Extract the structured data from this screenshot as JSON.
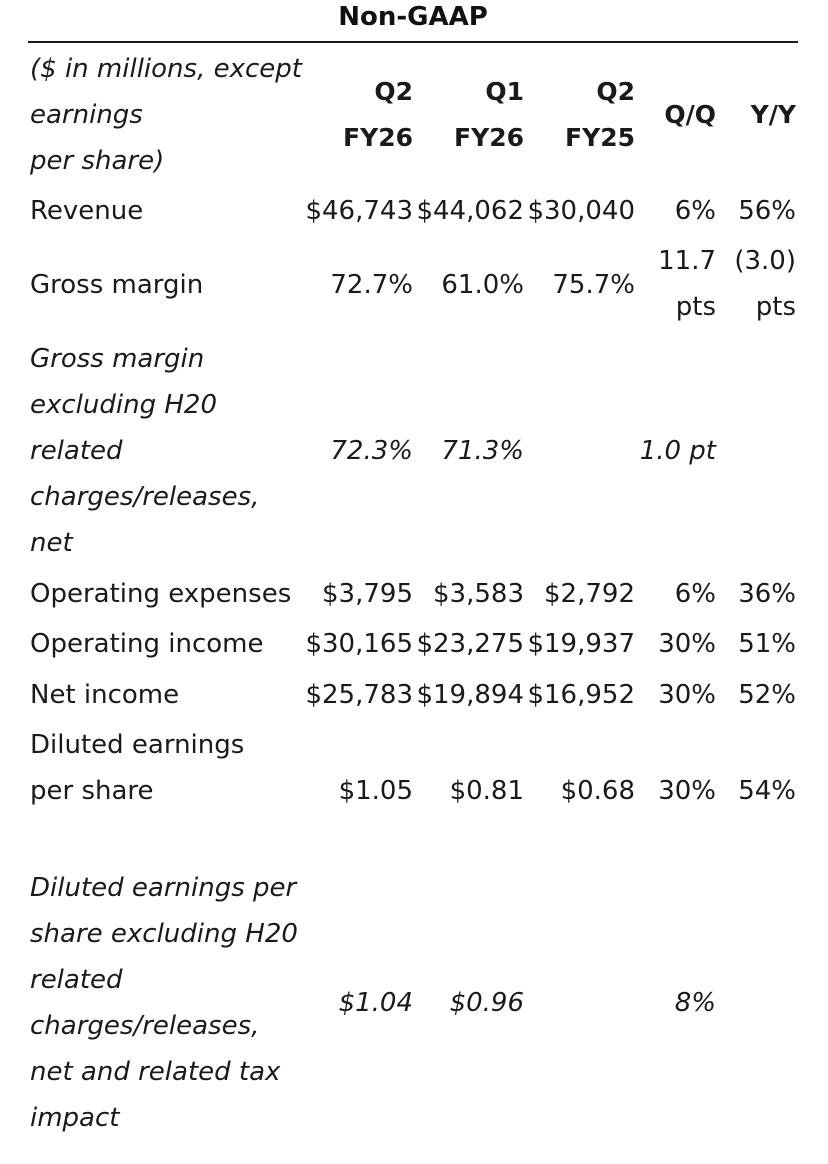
{
  "title": "Non-GAAP",
  "header": {
    "label": [
      "($ in millions, except",
      "earnings",
      "per share)"
    ],
    "q2fy26": [
      "Q2",
      "FY26"
    ],
    "q1fy26": [
      "Q1",
      "FY26"
    ],
    "q2fy25": [
      "Q2",
      "FY25"
    ],
    "qq": "Q/Q",
    "yy": "Y/Y"
  },
  "rows": {
    "revenue": {
      "label": "Revenue",
      "q2fy26": "$46,743",
      "q1fy26": "$44,062",
      "q2fy25": "$30,040",
      "qq": "6%",
      "yy": "56%"
    },
    "gross_margin": {
      "label": "Gross margin",
      "q2fy26": "72.7%",
      "q1fy26": "61.0%",
      "q2fy25": "75.7%",
      "qq": [
        "11.7",
        "pts"
      ],
      "yy": [
        "(3.0)",
        "pts"
      ]
    },
    "gross_margin_ex": {
      "label": [
        "Gross margin",
        "excluding H20",
        "related",
        "charges/releases,",
        "net"
      ],
      "q2fy26": "72.3%",
      "q1fy26": "71.3%",
      "qq": "1.0 pt"
    },
    "opex": {
      "label": "Operating expenses",
      "q2fy26": "$3,795",
      "q1fy26": "$3,583",
      "q2fy25": "$2,792",
      "qq": "6%",
      "yy": "36%"
    },
    "op_income": {
      "label": "Operating income",
      "q2fy26": "$30,165",
      "q1fy26": "$23,275",
      "q2fy25": "$19,937",
      "qq": "30%",
      "yy": "51%"
    },
    "net_income": {
      "label": "Net income",
      "q2fy26": "$25,783",
      "q1fy26": "$19,894",
      "q2fy25": "$16,952",
      "qq": "30%",
      "yy": "52%"
    },
    "eps": {
      "label": [
        "Diluted earnings",
        "per share"
      ],
      "q2fy26": "$1.05",
      "q1fy26": "$0.81",
      "q2fy25": "$0.68",
      "qq": "30%",
      "yy": "54%"
    },
    "eps_ex": {
      "label": [
        "Diluted earnings per",
        "share excluding H20",
        "related",
        "charges/releases,",
        "net and related tax",
        "impact"
      ],
      "q2fy26": "$1.04",
      "q1fy26": "$0.96",
      "qq": "8%"
    }
  }
}
